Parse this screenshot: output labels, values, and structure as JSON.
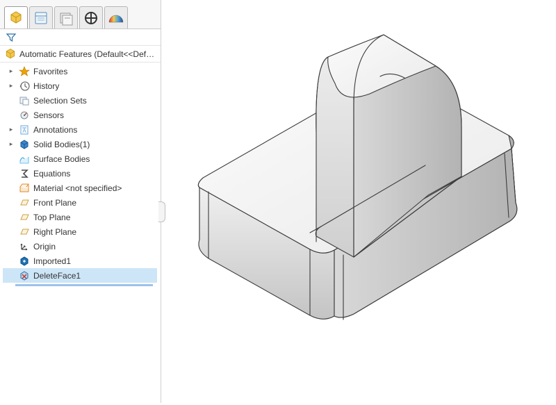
{
  "tabs": {
    "feature_manager": "FeatureManager",
    "property_manager": "PropertyManager",
    "configuration_manager": "ConfigurationManager",
    "dimxpert_manager": "DimXpertManager",
    "display_manager": "DisplayManager"
  },
  "filter": {
    "placeholder": ""
  },
  "root": {
    "label": "Automatic Features  (Default<<Default>_D"
  },
  "tree": [
    {
      "id": "favorites",
      "label": "Favorites",
      "expandable": true,
      "icon": "star",
      "icon_color": "#f0a202"
    },
    {
      "id": "history",
      "label": "History",
      "expandable": true,
      "icon": "history",
      "icon_color": "#6f6f6f"
    },
    {
      "id": "selection_sets",
      "label": "Selection Sets",
      "expandable": false,
      "icon": "selset",
      "icon_color": "#8fa0b0"
    },
    {
      "id": "sensors",
      "label": "Sensors",
      "expandable": false,
      "icon": "sensor",
      "icon_color": "#7f8a93"
    },
    {
      "id": "annotations",
      "label": "Annotations",
      "expandable": true,
      "icon": "note",
      "icon_color": "#6aa5d8"
    },
    {
      "id": "solid_bodies",
      "label": "Solid Bodies(1)",
      "expandable": true,
      "icon": "solid",
      "icon_color": "#3a87cf"
    },
    {
      "id": "surface_bodies",
      "label": "Surface Bodies",
      "expandable": false,
      "icon": "surface",
      "icon_color": "#4eb2e6"
    },
    {
      "id": "equations",
      "label": "Equations",
      "expandable": false,
      "icon": "sigma",
      "icon_color": "#4a4a4a"
    },
    {
      "id": "material",
      "label": "Material <not specified>",
      "expandable": false,
      "icon": "material",
      "icon_color": "#e38a2b"
    },
    {
      "id": "front_plane",
      "label": "Front Plane",
      "expandable": false,
      "icon": "plane",
      "icon_color": "#cfa249"
    },
    {
      "id": "top_plane",
      "label": "Top Plane",
      "expandable": false,
      "icon": "plane",
      "icon_color": "#cfa249"
    },
    {
      "id": "right_plane",
      "label": "Right Plane",
      "expandable": false,
      "icon": "plane",
      "icon_color": "#cfa249"
    },
    {
      "id": "origin",
      "label": "Origin",
      "expandable": false,
      "icon": "origin",
      "icon_color": "#444444"
    },
    {
      "id": "imported1",
      "label": "Imported1",
      "expandable": false,
      "icon": "imported",
      "icon_color": "#1f73b7"
    },
    {
      "id": "deleteface1",
      "label": "DeleteFace1",
      "expandable": false,
      "icon": "delface",
      "icon_color": "#2a6fa8",
      "selected": true
    }
  ],
  "part_render": {
    "edge_color": "#3b3b3b",
    "fill_light": "#f4f4f4",
    "fill_mid": "#e1e1e1",
    "fill_shadow": "#c6c6c6",
    "fill_dark": "#b4b4b4",
    "background": "#ffffff"
  },
  "colors": {
    "accent": "#4a90d9",
    "tab_border": "#b7b7b7",
    "panel_border": "#d0d0d0"
  }
}
